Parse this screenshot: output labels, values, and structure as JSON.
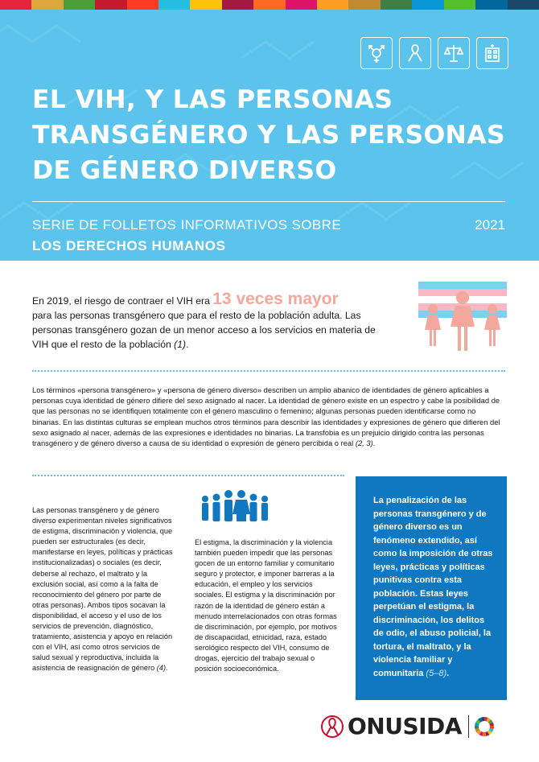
{
  "stripe_colors": [
    "#e5243b",
    "#dda63a",
    "#4c9f38",
    "#c5192d",
    "#ff3a21",
    "#26bde2",
    "#fcc30b",
    "#a21942",
    "#fd6925",
    "#dd1367",
    "#fd9d24",
    "#bf8b2e",
    "#3f7e44",
    "#0a97d9",
    "#56c02b",
    "#00689d",
    "#19486a"
  ],
  "header": {
    "title_line1": "EL VIH, Y LAS PERSONAS",
    "title_line2": "TRANSGÉNERO Y LAS PERSONAS",
    "title_line3": "DE GÉNERO DIVERSO",
    "series_line1": "SERIE DE FOLLETOS INFORMATIVOS SOBRE",
    "series_line2": "LOS DERECHOS HUMANOS",
    "year": "2021",
    "icons": [
      "transgender-symbol-icon",
      "ribbon-icon",
      "scales-of-justice-icon",
      "hospital-building-icon"
    ]
  },
  "intro": {
    "pre": "En 2019, el riesgo de contraer el VIH era",
    "highlight": "13 veces mayor",
    "post": "para las personas transgénero que para el resto de la población adulta. Las personas transgénero gozan de un menor acceso a los servicios en materia de VIH que el resto de la población",
    "ref": "(1)",
    "end": "."
  },
  "definition": {
    "text": "Los términos «persona transgénero» y «persona de género diverso» describen un amplio abanico de identidades de género aplicables a personas cuya identidad de género difiere del sexo asignado al nacer. La identidad de género existe en un espectro y cabe la posibilidad de que las personas no se identifiquen totalmente con el género masculino o femenino; algunas personas pueden identificarse como no binarias. En las distintas culturas se emplean muchos otros términos para describir las identidades y expresiones de género que difieren del sexo asignado al nacer, además de las expresiones e identidades no binarias. La transfobia es un prejuicio dirigido contra las personas transgénero y de género diverso a causa de su identidad o expresión de género percibida o real",
    "ref": "(2, 3)",
    "end": "."
  },
  "col1": {
    "text": "Las personas transgénero y de género diverso experimentan niveles significativos de estigma, discriminación y violencia, que pueden ser estructurales (es decir, manifestarse en leyes, políticas y prácticas institucionalizadas) o sociales (es decir, deberse al rechazo, el maltrato y la exclusión social, así como a la falta de reconocimiento del género por parte de otras personas). Ambos tipos socavan la disponibilidad, el acceso y el uso de los servicios de prevención, diagnóstico, tratamiento, asistencia y apoyo en relación con el VIH, así como otros servicios de salud sexual y reproductiva, incluida la asistencia de reasignación de género",
    "ref": "(4)",
    "end": "."
  },
  "col2": {
    "text": "El estigma, la discriminación y la violencia también pueden impedir que las personas gocen de un entorno familiar y comunitario seguro y protector, e imponer barreras a la educación, el empleo y los servicios sociales. El estigma y la discriminación por razón de la identidad de género están a menudo interrelacionados con otras formas de discriminación, por ejemplo, por motivos de discapacidad, etnicidad, raza, estado serológico respecto del VIH, consumo de drogas, ejercicio del trabajo sexual o posición socioeconómica."
  },
  "callout": {
    "text": "La penalización de las personas transgénero y de género diverso es un fenómeno extendido, así como la imposición de otras leyes, prácticas y políticas punitivas contra esta población. Estas leyes perpetúan el estigma, la discriminación, los delitos de odio, el abuso policial, la tortura, el maltrato, y la violencia familiar y comunitaria",
    "ref": "(5–8)",
    "end": "."
  },
  "footer": {
    "logo_text": "ONUSIDA"
  },
  "colors": {
    "header_bg": "#5cc3ec",
    "callout_bg": "#0f78c0",
    "highlight": "#f4a79c",
    "people_pink": "#f4a79c",
    "crowd_blue": "#0f78c0"
  }
}
